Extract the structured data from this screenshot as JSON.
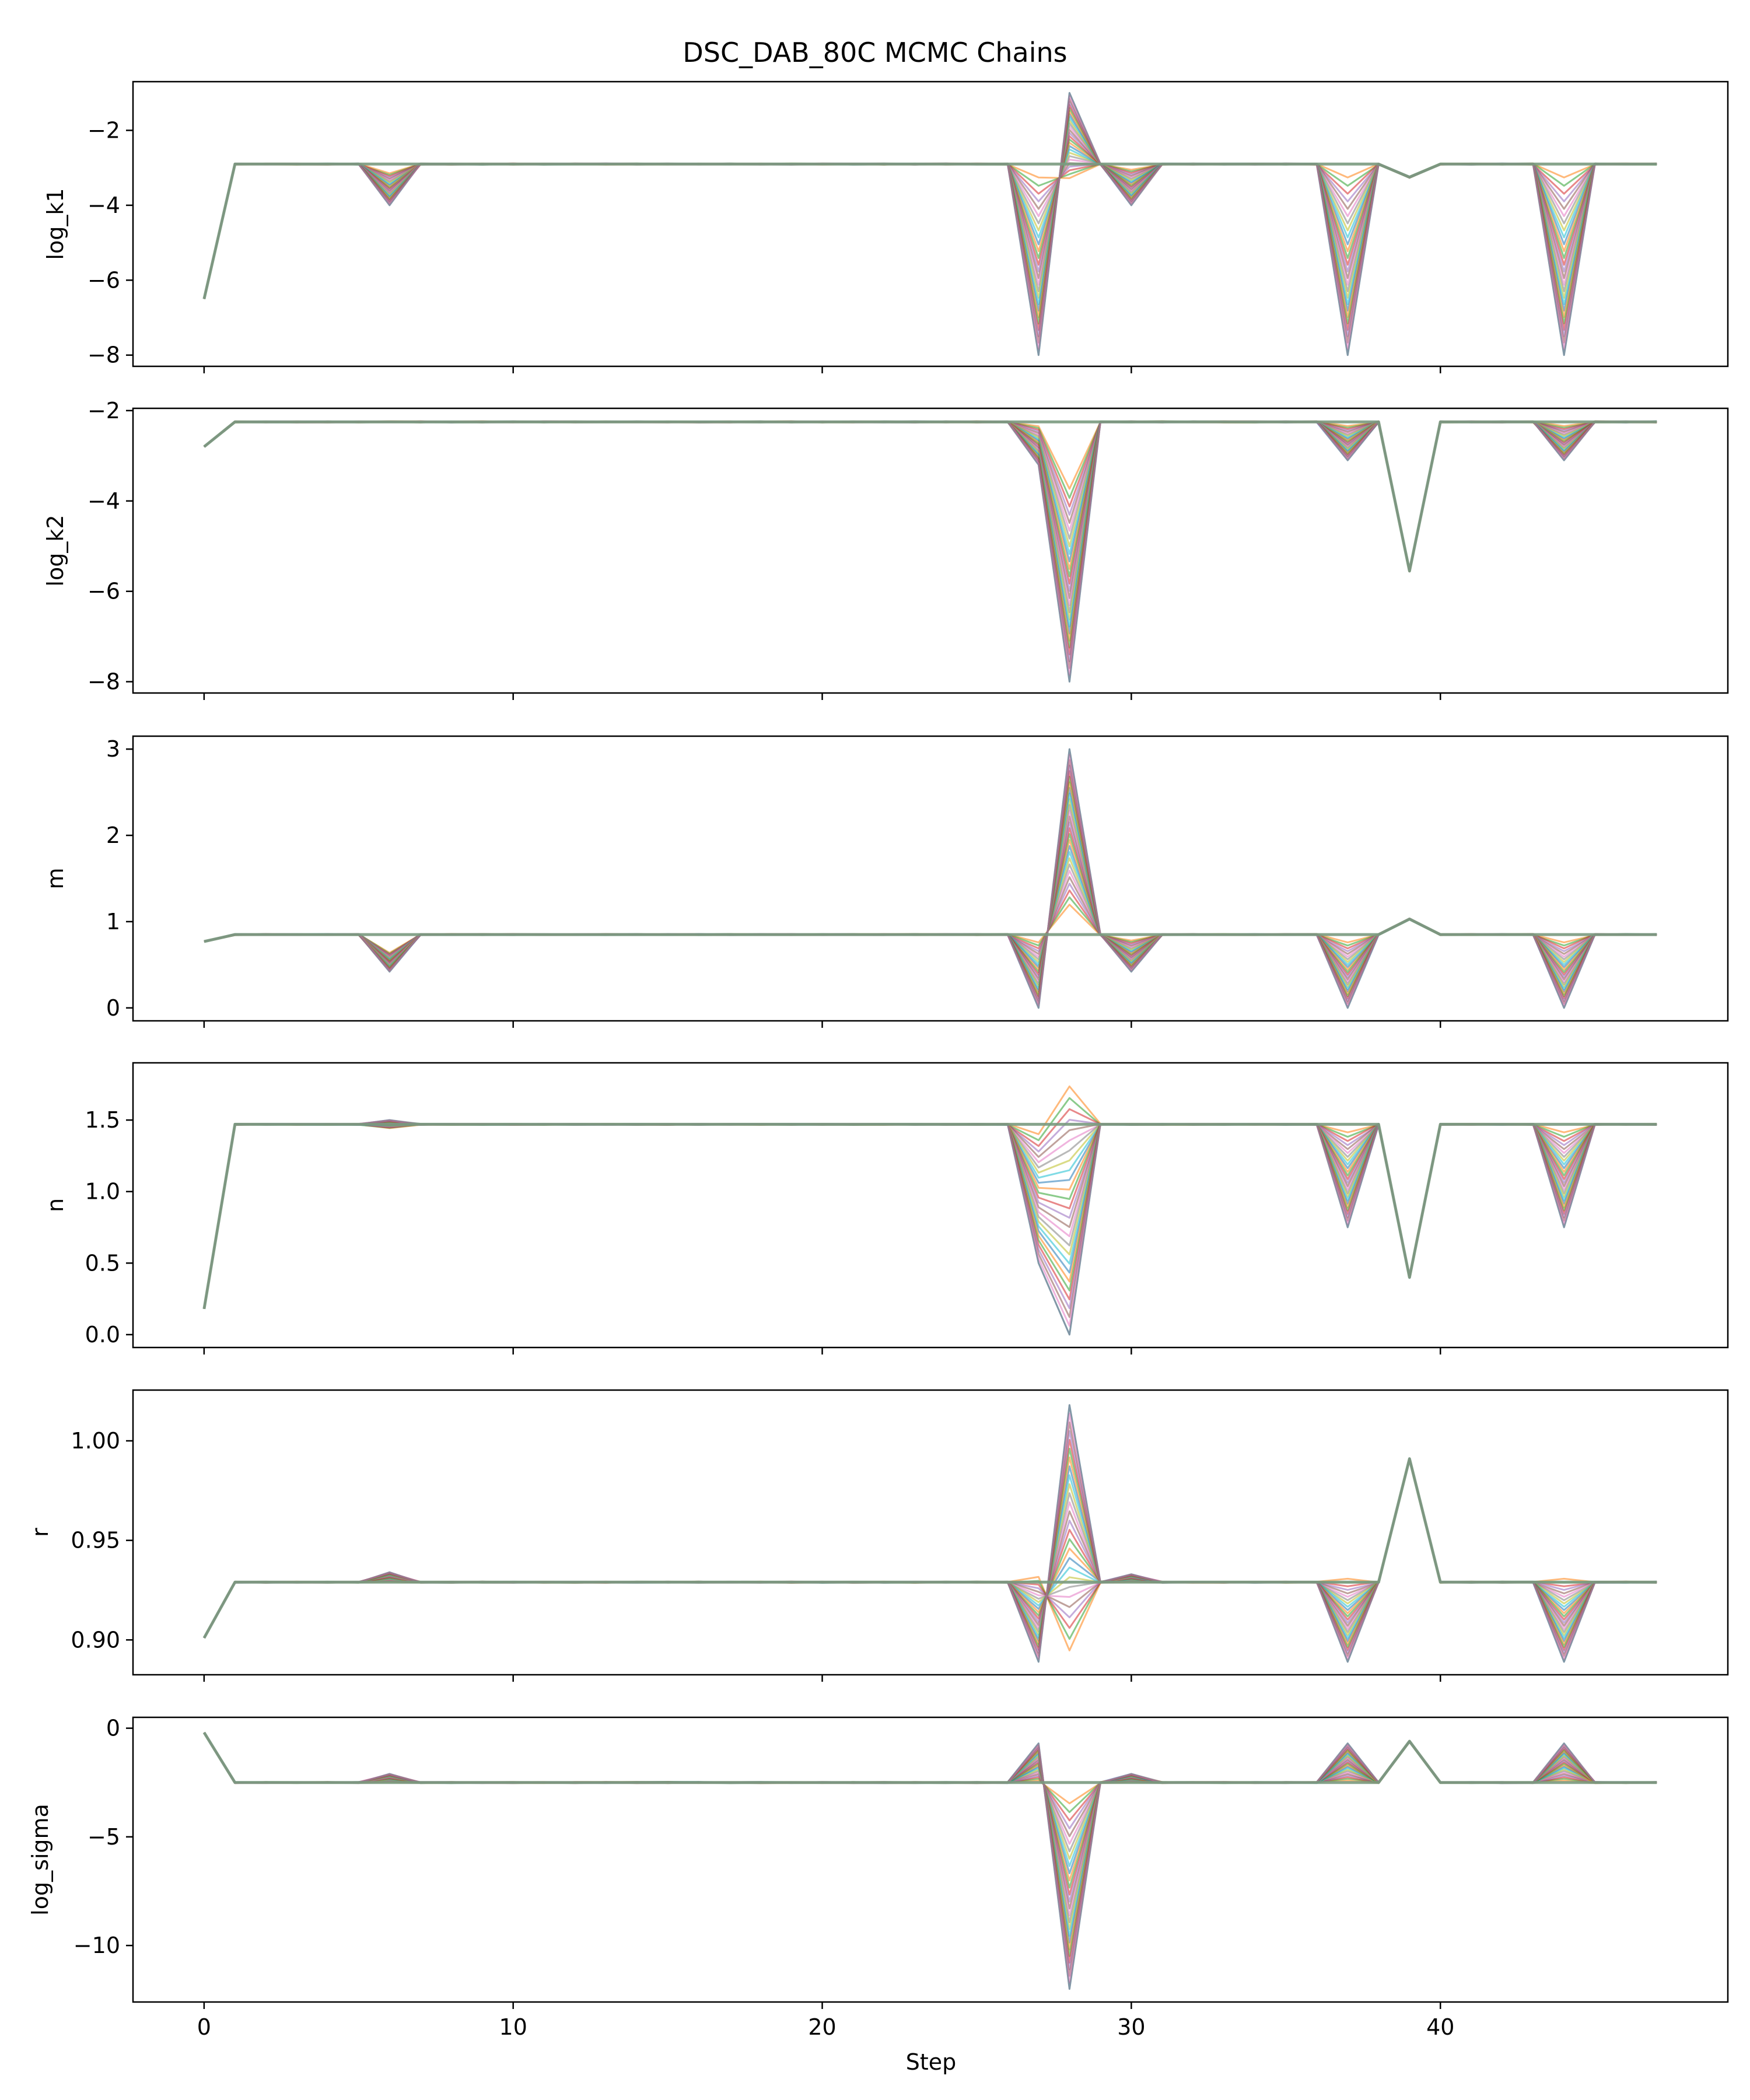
{
  "chart_data": {
    "type": "line",
    "title": "DSC_DAB_80C MCMC Chains",
    "xlabel": "Step",
    "xlim": [
      -2.3,
      49.3
    ],
    "xticks": [
      0,
      10,
      20,
      30,
      40
    ],
    "steps": 48,
    "colors": [
      "#1f77b4",
      "#ff7f0e",
      "#2ca02c",
      "#d62728",
      "#9467bd",
      "#8c564b",
      "#e377c2",
      "#7f7f7f",
      "#bcbd22",
      "#17becf"
    ],
    "panels": [
      {
        "ylabel": "log_k1",
        "ylim": [
          -8.3,
          -0.7
        ],
        "yticks": [
          -8,
          -6,
          -4,
          -2
        ],
        "baseline": [
          -6.5,
          -2.9,
          -2.9,
          -2.9,
          -2.9,
          -2.9,
          -2.9,
          -2.9,
          -2.9,
          -2.9,
          -2.9,
          -2.9,
          -2.9,
          -2.9,
          -2.9,
          -2.9,
          -2.9,
          -2.9,
          -2.9,
          -2.9,
          -2.9,
          -2.9,
          -2.9,
          -2.9,
          -2.9,
          -2.9,
          -2.9,
          -2.9,
          -2.9,
          -2.9,
          -2.9,
          -2.9,
          -2.9,
          -2.9,
          -2.9,
          -2.9,
          -2.9,
          -2.9,
          -2.9,
          -3.25,
          -2.9,
          -2.9,
          -2.9,
          -2.9,
          -2.9,
          -2.9,
          -2.9,
          -2.9
        ],
        "spikes": [
          {
            "step": 6,
            "lo": -4.0,
            "hi": -3.1
          },
          {
            "step": 27,
            "lo": -8.0,
            "hi": -3.0
          },
          {
            "step": 28,
            "lo": -3.4,
            "hi": -1.0
          },
          {
            "step": 30,
            "lo": -4.0,
            "hi": -3.0
          },
          {
            "step": 37,
            "lo": -8.0,
            "hi": -3.0
          },
          {
            "step": 44,
            "lo": -8.0,
            "hi": -3.0
          }
        ]
      },
      {
        "ylabel": "log_k2",
        "ylim": [
          -8.25,
          -1.95
        ],
        "yticks": [
          -8,
          -6,
          -4,
          -2
        ],
        "baseline": [
          -2.8,
          -2.25,
          -2.25,
          -2.25,
          -2.25,
          -2.25,
          -2.25,
          -2.25,
          -2.25,
          -2.25,
          -2.25,
          -2.25,
          -2.25,
          -2.25,
          -2.25,
          -2.25,
          -2.25,
          -2.25,
          -2.25,
          -2.25,
          -2.25,
          -2.25,
          -2.25,
          -2.25,
          -2.25,
          -2.25,
          -2.25,
          -2.25,
          -2.25,
          -2.25,
          -2.25,
          -2.25,
          -2.25,
          -2.25,
          -2.25,
          -2.25,
          -2.25,
          -2.25,
          -2.25,
          -5.55,
          -2.25,
          -2.25,
          -2.25,
          -2.25,
          -2.25,
          -2.25,
          -2.25,
          -2.25
        ],
        "spikes": [
          {
            "step": 27,
            "lo": -3.2,
            "hi": -2.3
          },
          {
            "step": 28,
            "lo": -8.0,
            "hi": -3.5
          },
          {
            "step": 37,
            "lo": -3.1,
            "hi": -2.3
          },
          {
            "step": 44,
            "lo": -3.1,
            "hi": -2.3
          }
        ]
      },
      {
        "ylabel": "m",
        "ylim": [
          -0.15,
          3.15
        ],
        "yticks": [
          0,
          1,
          2,
          3
        ],
        "baseline": [
          0.77,
          0.85,
          0.85,
          0.85,
          0.85,
          0.85,
          0.85,
          0.85,
          0.85,
          0.85,
          0.85,
          0.85,
          0.85,
          0.85,
          0.85,
          0.85,
          0.85,
          0.85,
          0.85,
          0.85,
          0.85,
          0.85,
          0.85,
          0.85,
          0.85,
          0.85,
          0.85,
          0.85,
          0.85,
          0.85,
          0.85,
          0.85,
          0.85,
          0.85,
          0.85,
          0.85,
          0.85,
          0.85,
          0.85,
          1.03,
          0.85,
          0.85,
          0.85,
          0.85,
          0.85,
          0.85,
          0.85,
          0.85
        ],
        "spikes": [
          {
            "step": 6,
            "lo": 0.42,
            "hi": 0.65
          },
          {
            "step": 27,
            "lo": 0.0,
            "hi": 0.8
          },
          {
            "step": 28,
            "lo": 1.1,
            "hi": 3.0
          },
          {
            "step": 30,
            "lo": 0.42,
            "hi": 0.8
          },
          {
            "step": 37,
            "lo": 0.0,
            "hi": 0.8
          },
          {
            "step": 44,
            "lo": 0.0,
            "hi": 0.8
          }
        ]
      },
      {
        "ylabel": "n",
        "ylim": [
          -0.09,
          1.9
        ],
        "yticks": [
          0.0,
          0.5,
          1.0,
          1.5
        ],
        "tick_decimals": 1,
        "baseline": [
          0.18,
          1.47,
          1.47,
          1.47,
          1.47,
          1.47,
          1.47,
          1.47,
          1.47,
          1.47,
          1.47,
          1.47,
          1.47,
          1.47,
          1.47,
          1.47,
          1.47,
          1.47,
          1.47,
          1.47,
          1.47,
          1.47,
          1.47,
          1.47,
          1.47,
          1.47,
          1.47,
          1.47,
          1.47,
          1.47,
          1.47,
          1.47,
          1.47,
          1.47,
          1.47,
          1.47,
          1.47,
          1.47,
          1.47,
          0.4,
          1.47,
          1.47,
          1.47,
          1.47,
          1.47,
          1.47,
          1.47,
          1.47
        ],
        "spikes": [
          {
            "step": 6,
            "lo": 1.44,
            "hi": 1.5
          },
          {
            "step": 27,
            "lo": 0.5,
            "hi": 1.45
          },
          {
            "step": 28,
            "lo": 0.0,
            "hi": 1.83
          },
          {
            "step": 37,
            "lo": 0.75,
            "hi": 1.45
          },
          {
            "step": 44,
            "lo": 0.75,
            "hi": 1.45
          }
        ]
      },
      {
        "ylabel": "r",
        "ylim": [
          0.8825,
          1.0255
        ],
        "yticks": [
          0.9,
          0.95,
          1.0
        ],
        "tick_decimals": 2,
        "baseline": [
          0.901,
          0.929,
          0.929,
          0.929,
          0.929,
          0.929,
          0.929,
          0.929,
          0.929,
          0.929,
          0.929,
          0.929,
          0.929,
          0.929,
          0.929,
          0.929,
          0.929,
          0.929,
          0.929,
          0.929,
          0.929,
          0.929,
          0.929,
          0.929,
          0.929,
          0.929,
          0.929,
          0.929,
          0.929,
          0.929,
          0.929,
          0.929,
          0.929,
          0.929,
          0.929,
          0.929,
          0.929,
          0.929,
          0.929,
          0.991,
          0.929,
          0.929,
          0.929,
          0.929,
          0.929,
          0.929,
          0.929,
          0.929
        ],
        "spikes": [
          {
            "step": 6,
            "lo": 0.929,
            "hi": 0.934
          },
          {
            "step": 27,
            "lo": 0.889,
            "hi": 0.934
          },
          {
            "step": 28,
            "lo": 0.888,
            "hi": 1.018
          },
          {
            "step": 30,
            "lo": 0.929,
            "hi": 0.933
          },
          {
            "step": 37,
            "lo": 0.889,
            "hi": 0.933
          },
          {
            "step": 44,
            "lo": 0.889,
            "hi": 0.933
          }
        ]
      },
      {
        "ylabel": "log_sigma",
        "ylim": [
          -12.6,
          0.5
        ],
        "yticks": [
          -10,
          -5,
          0
        ],
        "baseline": [
          -0.2,
          -2.5,
          -2.5,
          -2.5,
          -2.5,
          -2.5,
          -2.5,
          -2.5,
          -2.5,
          -2.5,
          -2.5,
          -2.5,
          -2.5,
          -2.5,
          -2.5,
          -2.5,
          -2.5,
          -2.5,
          -2.5,
          -2.5,
          -2.5,
          -2.5,
          -2.5,
          -2.5,
          -2.5,
          -2.5,
          -2.5,
          -2.5,
          -2.5,
          -2.5,
          -2.5,
          -2.5,
          -2.5,
          -2.5,
          -2.5,
          -2.5,
          -2.5,
          -2.5,
          -2.5,
          -0.6,
          -2.5,
          -2.5,
          -2.5,
          -2.5,
          -2.5,
          -2.5,
          -2.5,
          -2.5
        ],
        "spikes": [
          {
            "step": 6,
            "lo": -2.5,
            "hi": -2.1
          },
          {
            "step": 27,
            "lo": -2.5,
            "hi": -0.7
          },
          {
            "step": 28,
            "lo": -12.0,
            "hi": -3.0
          },
          {
            "step": 30,
            "lo": -2.5,
            "hi": -2.1
          },
          {
            "step": 37,
            "lo": -2.5,
            "hi": -0.7
          },
          {
            "step": 44,
            "lo": -2.5,
            "hi": -0.7
          }
        ]
      }
    ]
  }
}
